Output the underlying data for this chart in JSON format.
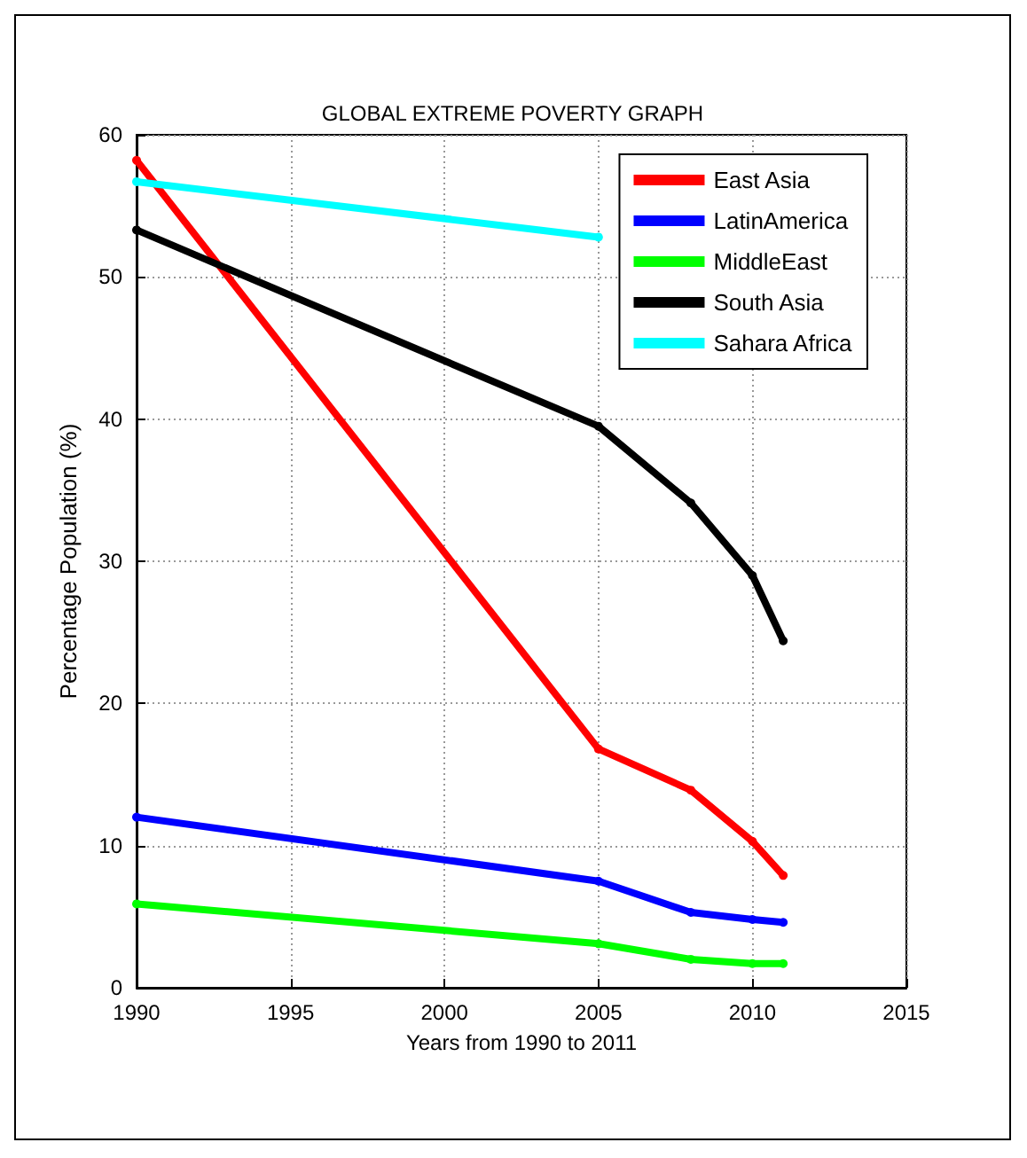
{
  "chart_data": {
    "type": "line",
    "title": "GLOBAL EXTREME POVERTY GRAPH",
    "xlabel": "Years from 1990 to 2011",
    "ylabel": "Percentage Population (%)",
    "x": [
      1990,
      2005,
      2008,
      2010,
      2011
    ],
    "series": [
      {
        "name": "East Asia",
        "color": "#ff0000",
        "values": [
          58.2,
          16.8,
          13.9,
          10.3,
          7.9
        ]
      },
      {
        "name": "LatinAmerica",
        "color": "#0000ff",
        "values": [
          12.0,
          7.5,
          5.3,
          4.8,
          4.6
        ]
      },
      {
        "name": "MiddleEast",
        "color": "#00ff00",
        "values": [
          5.9,
          3.1,
          2.0,
          1.7,
          1.7
        ]
      },
      {
        "name": "South Asia",
        "color": "#000000",
        "values": [
          53.3,
          39.5,
          34.1,
          29.0,
          24.4
        ]
      },
      {
        "name": "Sahara Africa",
        "color": "#00ffff",
        "values": [
          56.7,
          52.8,
          null,
          null,
          null
        ]
      }
    ],
    "xlim": [
      1990,
      2015
    ],
    "xticks": [
      1990,
      1995,
      2000,
      2005,
      2010,
      2015
    ],
    "ylim": [
      0,
      60
    ],
    "yticks": [
      0,
      10,
      20,
      30,
      40,
      50,
      60
    ],
    "grid": true,
    "legend": "top right",
    "marker": "circle",
    "line_style": "solid"
  }
}
